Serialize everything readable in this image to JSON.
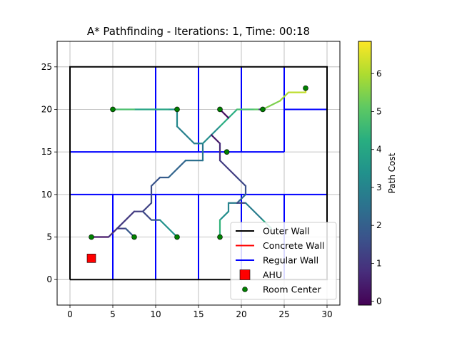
{
  "chart_data": {
    "type": "line",
    "title": "A* Pathfinding - Iterations: 1, Time: 00:18",
    "xlabel": "",
    "ylabel": "",
    "xlim": [
      -1.5,
      31.5
    ],
    "ylim": [
      -3,
      28
    ],
    "xticks": [
      0,
      5,
      10,
      15,
      20,
      25,
      30
    ],
    "yticks": [
      0,
      5,
      10,
      15,
      20,
      25
    ],
    "grid": true,
    "colorbar": {
      "label": "Path Cost",
      "min": -0.1,
      "max": 6.85,
      "ticks": [
        0,
        1,
        2,
        3,
        4,
        5,
        6
      ]
    },
    "legend": {
      "placement": "lower-right",
      "entries": [
        {
          "label": "Outer Wall",
          "kind": "line",
          "color": "#000000"
        },
        {
          "label": "Concrete Wall",
          "kind": "line",
          "color": "#ff0000"
        },
        {
          "label": "Regular Wall",
          "kind": "line",
          "color": "#0000ff"
        },
        {
          "label": "AHU",
          "kind": "square",
          "color": "#ff0000"
        },
        {
          "label": "Room Center",
          "kind": "dot",
          "color": "#008000"
        }
      ]
    },
    "outer_wall": [
      [
        0,
        0
      ],
      [
        30,
        0
      ],
      [
        30,
        25
      ],
      [
        0,
        25
      ],
      [
        0,
        0
      ]
    ],
    "regular_walls": [
      [
        [
          0,
          10
        ],
        [
          30,
          10
        ]
      ],
      [
        [
          0,
          15
        ],
        [
          25,
          15
        ]
      ],
      [
        [
          25,
          20
        ],
        [
          30,
          20
        ]
      ],
      [
        [
          10,
          15
        ],
        [
          10,
          25
        ]
      ],
      [
        [
          15,
          15
        ],
        [
          15,
          25
        ]
      ],
      [
        [
          20,
          15
        ],
        [
          20,
          25
        ]
      ],
      [
        [
          25,
          15
        ],
        [
          25,
          25
        ]
      ],
      [
        [
          5,
          0
        ],
        [
          5,
          10
        ]
      ],
      [
        [
          10,
          0
        ],
        [
          10,
          10
        ]
      ],
      [
        [
          15,
          0
        ],
        [
          15,
          10
        ]
      ],
      [
        [
          20,
          0
        ],
        [
          20,
          10
        ]
      ],
      [
        [
          25,
          0
        ],
        [
          25,
          10
        ]
      ]
    ],
    "ahu": [
      2.5,
      2.5
    ],
    "room_centers": [
      [
        2.5,
        5
      ],
      [
        7.5,
        5
      ],
      [
        12.5,
        5
      ],
      [
        17.5,
        5
      ],
      [
        5,
        20
      ],
      [
        12.5,
        20
      ],
      [
        17.5,
        20
      ],
      [
        22.5,
        20
      ],
      [
        27.5,
        22.5
      ],
      [
        18.3,
        15
      ]
    ],
    "paths": [
      {
        "points": [
          [
            2.5,
            5
          ],
          [
            4.5,
            5
          ],
          [
            5.5,
            6
          ],
          [
            6.5,
            6
          ],
          [
            7.5,
            5
          ]
        ],
        "cost": [
          0.1,
          0.6,
          1.0,
          1.4,
          2.2
        ]
      },
      {
        "points": [
          [
            5.5,
            6
          ],
          [
            7.5,
            8
          ],
          [
            8.5,
            8
          ],
          [
            9.5,
            9
          ],
          [
            9.5,
            11
          ],
          [
            10.5,
            12
          ],
          [
            11.5,
            12
          ],
          [
            13.5,
            14
          ],
          [
            15.5,
            14
          ],
          [
            15.5,
            16
          ],
          [
            14.5,
            16
          ],
          [
            12.5,
            18
          ],
          [
            12.5,
            20
          ]
        ],
        "cost": [
          1.0,
          1.1,
          1.2,
          1.4,
          1.6,
          1.8,
          2.0,
          2.3,
          2.6,
          2.7,
          2.8,
          3.0,
          3.3
        ]
      },
      {
        "points": [
          [
            8.5,
            8
          ],
          [
            9.5,
            7
          ],
          [
            10.5,
            7
          ],
          [
            12.5,
            5
          ]
        ],
        "cost": [
          1.2,
          1.6,
          2.0,
          4.8
        ]
      },
      {
        "points": [
          [
            12.5,
            20
          ],
          [
            11.5,
            20
          ],
          [
            7.5,
            20
          ],
          [
            5,
            20
          ]
        ],
        "cost": [
          3.3,
          3.6,
          4.2,
          5.4
        ]
      },
      {
        "points": [
          [
            12.5,
            20
          ],
          [
            12.3,
            20
          ]
        ],
        "cost": [
          0.2,
          0.4
        ]
      },
      {
        "points": [
          [
            15.5,
            16
          ],
          [
            17.5,
            18
          ],
          [
            19.5,
            20
          ],
          [
            21.5,
            20
          ],
          [
            22.5,
            20
          ]
        ],
        "cost": [
          2.7,
          3.8,
          4.6,
          4.9,
          5.2
        ]
      },
      {
        "points": [
          [
            17.5,
            20
          ],
          [
            18.5,
            19
          ]
        ],
        "cost": [
          0.0,
          0.3
        ]
      },
      {
        "points": [
          [
            22.5,
            20
          ],
          [
            24.5,
            21
          ],
          [
            25.5,
            22
          ],
          [
            27.5,
            22
          ],
          [
            27.5,
            22.5
          ]
        ],
        "cost": [
          5.2,
          5.7,
          6.0,
          6.3,
          6.6
        ]
      },
      {
        "points": [
          [
            22.1,
            20
          ],
          [
            22.6,
            20
          ]
        ],
        "cost": [
          0.5,
          0.8
        ]
      },
      {
        "points": [
          [
            16.5,
            17
          ],
          [
            17.5,
            16
          ],
          [
            17.5,
            14
          ],
          [
            19.5,
            12
          ],
          [
            20.5,
            11
          ],
          [
            20.5,
            10
          ],
          [
            19.5,
            9
          ],
          [
            18.5,
            9
          ],
          [
            18.5,
            8
          ],
          [
            17.5,
            7
          ],
          [
            17.5,
            5
          ]
        ],
        "cost": [
          0.3,
          0.5,
          1.0,
          1.3,
          1.5,
          1.8,
          2.6,
          2.9,
          3.1,
          3.5,
          5.3
        ]
      },
      {
        "points": [
          [
            19.5,
            9
          ],
          [
            20.5,
            9
          ],
          [
            22.5,
            7
          ],
          [
            23.5,
            6
          ]
        ],
        "cost": [
          1.0,
          1.6,
          4.0,
          4.3
        ]
      }
    ]
  }
}
